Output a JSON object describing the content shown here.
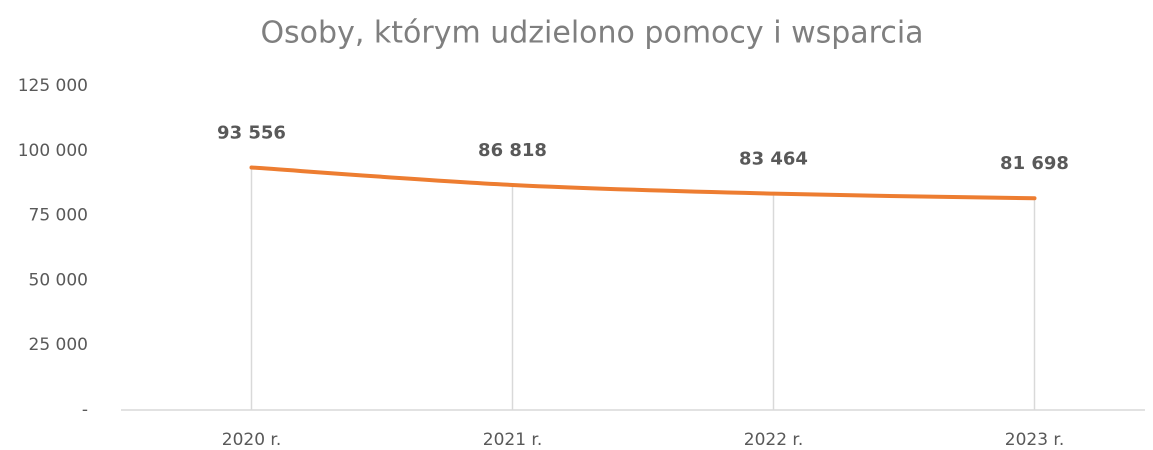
{
  "chart_data": {
    "type": "line",
    "title": "Osoby, którym udzielono pomocy i wsparcia",
    "categories": [
      "2020 r.",
      "2021 r.",
      "2022 r.",
      "2023 r."
    ],
    "series": [
      {
        "name": "Osoby",
        "color": "#ed7d31",
        "values": [
          93556,
          86818,
          83464,
          81698
        ],
        "value_labels": [
          "93 556",
          "86 818",
          "83 464",
          "81 698"
        ]
      }
    ],
    "ylim": [
      0,
      125000
    ],
    "yticks": [
      {
        "value": 0,
        "label": "-"
      },
      {
        "value": 25000,
        "label": "25 000"
      },
      {
        "value": 50000,
        "label": "50 000"
      },
      {
        "value": 75000,
        "label": "75 000"
      },
      {
        "value": 100000,
        "label": "100 000"
      },
      {
        "value": 125000,
        "label": "125 000"
      }
    ],
    "drop_lines": true
  }
}
